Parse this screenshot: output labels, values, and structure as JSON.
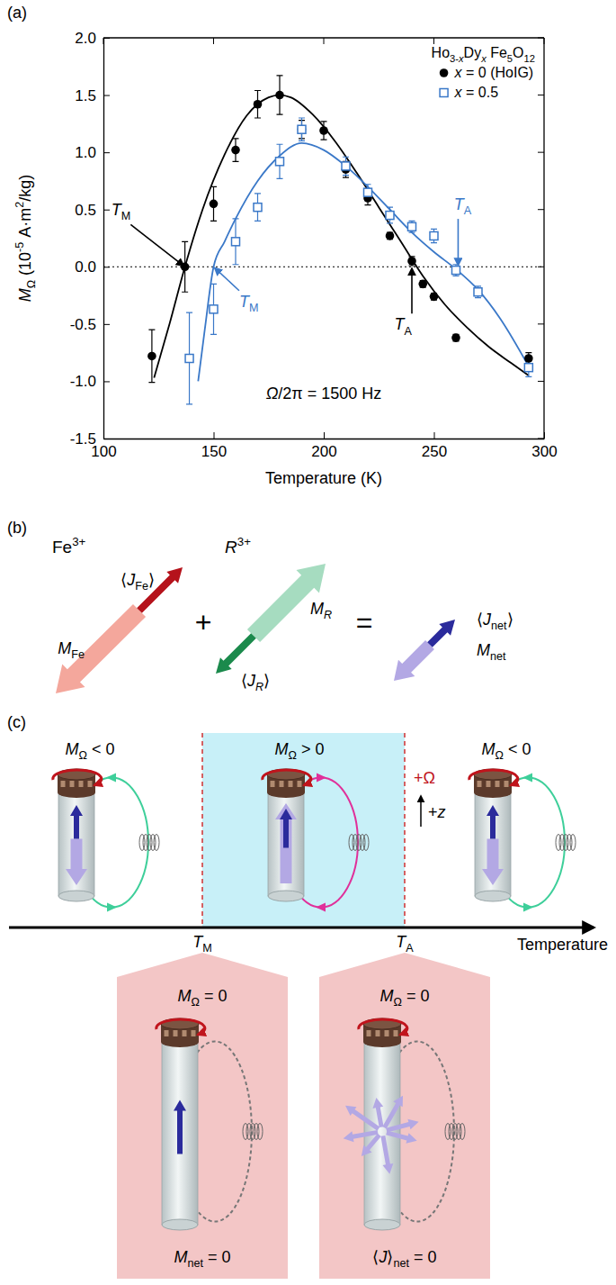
{
  "chart_data": {
    "type": "scatter",
    "panel": "(a)",
    "xlabel": "Temperature (K)",
    "ylabel": [
      {
        "text": "M",
        "style": "italic"
      },
      {
        "text": "Ω",
        "style": "sub"
      },
      " (10",
      {
        "text": "-5",
        "style": "sup"
      },
      " A·m",
      {
        "text": "2",
        "style": "sup"
      },
      "/kg)"
    ],
    "xlim": [
      100,
      300
    ],
    "xticks": [
      100,
      150,
      200,
      250,
      300
    ],
    "ylim": [
      -1.5,
      2.0
    ],
    "yticks": [
      -1.5,
      {
        "value": -1,
        "label": "-1.0"
      },
      -0.5,
      {
        "value": 0,
        "label": "0.0"
      },
      0.5,
      {
        "value": 1,
        "label": "1.0"
      },
      1.5,
      {
        "value": 2,
        "label": "2.0"
      }
    ],
    "legend": "upper right",
    "legend_title": [
      "Ho",
      {
        "text": "3-",
        "style": "sub"
      },
      {
        "text": "x",
        "style": "sub-italic"
      },
      "Dy",
      {
        "text": "x",
        "style": "sub-italic"
      },
      " Fe",
      {
        "text": "5",
        "style": "sub"
      },
      "O",
      {
        "text": "12",
        "style": "sub"
      }
    ],
    "reference_line": {
      "y": 0,
      "line_style": "dotted"
    },
    "series": [
      {
        "name": [
          {
            "text": "x",
            "style": "italic"
          },
          " = 0 (HoIG)"
        ],
        "type": "scatter",
        "color": "#000000",
        "marker": "circle",
        "x": [
          122,
          137,
          150,
          160,
          170,
          180,
          190,
          200,
          210,
          220,
          230,
          240,
          245,
          250,
          260,
          293
        ],
        "values": [
          -0.78,
          0,
          0.55,
          1.02,
          1.42,
          1.5,
          1.2,
          1.19,
          0.85,
          0.6,
          0.27,
          0.05,
          -0.15,
          -0.26,
          -0.62,
          -0.8
        ],
        "errors": [
          0.23,
          0.22,
          0.15,
          0.1,
          0.12,
          0.17,
          0.08,
          0.08,
          0.07,
          0.06,
          0.03,
          0.04,
          0.03,
          0.03,
          0.03,
          0.05
        ]
      },
      {
        "name": [
          {
            "text": "x",
            "style": "italic"
          },
          " = 0.5"
        ],
        "type": "scatter",
        "color": "#3a78c8",
        "marker": "open-square",
        "x": [
          139,
          150,
          160,
          170,
          180,
          190,
          210,
          220,
          230,
          240,
          250,
          260,
          270,
          293
        ],
        "values": [
          -0.8,
          -0.37,
          0.22,
          0.52,
          0.92,
          1.2,
          0.88,
          0.65,
          0.45,
          0.35,
          0.27,
          -0.03,
          -0.22,
          -0.88
        ],
        "errors": [
          0.4,
          0.22,
          0.2,
          0.12,
          0.15,
          0.1,
          0.08,
          0.07,
          0.07,
          0.05,
          0.06,
          0.05,
          0.05,
          0.08
        ]
      },
      {
        "type": "line",
        "color": "#000000",
        "line_style": "solid",
        "x": [
          123,
          130,
          137,
          145,
          155,
          165,
          175,
          180,
          185,
          195,
          205,
          215,
          225,
          235,
          245,
          255,
          265,
          275,
          285,
          293
        ],
        "values": [
          -0.97,
          -0.5,
          0,
          0.5,
          0.98,
          1.32,
          1.48,
          1.5,
          1.48,
          1.33,
          1.1,
          0.82,
          0.52,
          0.22,
          -0.08,
          -0.33,
          -0.53,
          -0.7,
          -0.84,
          -0.95
        ]
      },
      {
        "type": "line",
        "color": "#3a78c8",
        "line_style": "solid",
        "x": [
          143,
          146,
          150,
          155,
          160,
          170,
          180,
          190,
          200,
          210,
          220,
          230,
          240,
          250,
          260,
          270,
          280,
          293
        ],
        "values": [
          -1.0,
          -0.55,
          0,
          0.22,
          0.42,
          0.75,
          0.97,
          1.08,
          1.02,
          0.88,
          0.7,
          0.5,
          0.3,
          0.13,
          -0.02,
          -0.2,
          -0.45,
          -0.87
        ]
      }
    ],
    "annotations": [
      {
        "text": [
          {
            "text": "T",
            "style": "italic"
          },
          {
            "text": "M",
            "style": "sub"
          }
        ],
        "x": 108,
        "y": 0.45,
        "arrow_to": [
          137,
          0
        ],
        "color": "#000000"
      },
      {
        "text": [
          {
            "text": "T",
            "style": "italic"
          },
          {
            "text": "M",
            "style": "sub"
          }
        ],
        "x": 166,
        "y": -0.35,
        "arrow_to": [
          150,
          0
        ],
        "color": "#3a78c8"
      },
      {
        "text": [
          {
            "text": "T",
            "style": "italic"
          },
          {
            "text": "A",
            "style": "sub"
          }
        ],
        "x": 236,
        "y": -0.55,
        "arrow_to": [
          240,
          0
        ],
        "color": "#000000"
      },
      {
        "text": [
          {
            "text": "T",
            "style": "italic"
          },
          {
            "text": "A",
            "style": "sub"
          }
        ],
        "x": 263,
        "y": 0.5,
        "arrow_to": [
          261,
          0
        ],
        "color": "#3a78c8"
      },
      {
        "text": [
          {
            "text": "Ω",
            "style": "italic"
          },
          "/2π = 1500 Hz"
        ],
        "x": 200,
        "y": -1.15,
        "color": "#000000"
      }
    ]
  },
  "diagram_b": {
    "panel": "(b)",
    "items": [
      {
        "ion": [
          "Fe",
          {
            "text": "3+",
            "style": "sup"
          }
        ],
        "j": [
          "⟨",
          {
            "text": "J",
            "style": "italic"
          },
          {
            "text": "Fe",
            "style": "sub"
          },
          "⟩"
        ],
        "m": [
          {
            "text": "M",
            "style": "italic"
          },
          {
            "text": "Fe",
            "style": "sub"
          }
        ]
      },
      {
        "ion": [
          {
            "text": "R",
            "style": "italic"
          },
          {
            "text": "3+",
            "style": "sup"
          }
        ],
        "j": [
          "⟨",
          {
            "text": "J",
            "style": "italic"
          },
          {
            "text": "R",
            "style": "sub-italic"
          },
          "⟩"
        ],
        "m": [
          {
            "text": "M",
            "style": "italic"
          },
          {
            "text": "R",
            "style": "sub-italic"
          }
        ]
      },
      {
        "j": [
          "⟨",
          {
            "text": "J",
            "style": "italic"
          },
          {
            "text": "net",
            "style": "sub"
          },
          "⟩"
        ],
        "m": [
          {
            "text": "M",
            "style": "italic"
          },
          {
            "text": "net",
            "style": "sub"
          }
        ]
      }
    ],
    "operators": [
      "+",
      "="
    ]
  },
  "diagram_c": {
    "panel": "(c)",
    "states": [
      {
        "label": [
          {
            "text": "M",
            "style": "italic"
          },
          {
            "text": "Ω",
            "style": "sub"
          },
          " < 0"
        ]
      },
      {
        "label": [
          {
            "text": "M",
            "style": "italic"
          },
          {
            "text": "Ω",
            "style": "sub"
          },
          " > 0"
        ]
      },
      {
        "label": [
          {
            "text": "M",
            "style": "italic"
          },
          {
            "text": "Ω",
            "style": "sub"
          },
          " < 0"
        ]
      }
    ],
    "rotation": "+Ω",
    "direction": [
      "+",
      {
        "text": "z",
        "style": "italic"
      }
    ],
    "axis_label": "Temperature",
    "transitions": [
      {
        "temperature": [
          {
            "text": "T",
            "style": "italic"
          },
          {
            "text": "M",
            "style": "sub"
          }
        ],
        "label": [
          {
            "text": "M",
            "style": "italic"
          },
          {
            "text": "Ω",
            "style": "sub"
          },
          " = 0"
        ],
        "condition": [
          {
            "text": "M",
            "style": "italic"
          },
          {
            "text": "net",
            "style": "sub"
          },
          " = 0"
        ]
      },
      {
        "temperature": [
          {
            "text": "T",
            "style": "italic"
          },
          {
            "text": "A",
            "style": "sub"
          }
        ],
        "label": [
          {
            "text": "M",
            "style": "italic"
          },
          {
            "text": "Ω",
            "style": "sub"
          },
          " = 0"
        ],
        "condition": [
          "⟨",
          {
            "text": "J",
            "style": "italic"
          },
          "⟩",
          {
            "text": "net",
            "style": "sub"
          },
          " = 0"
        ]
      }
    ]
  }
}
